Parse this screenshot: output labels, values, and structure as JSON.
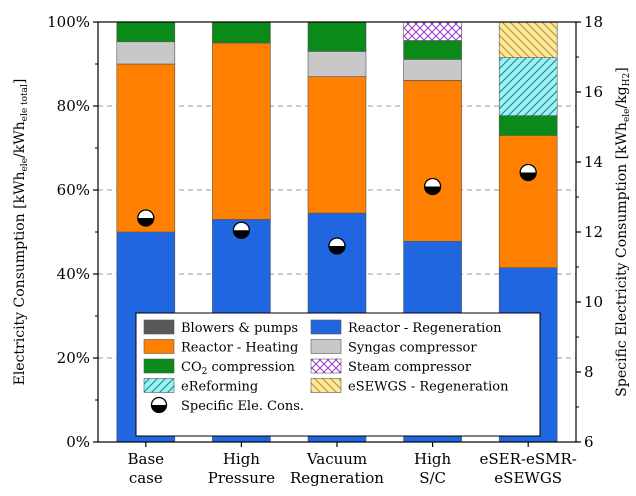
{
  "chart_data": {
    "type": "bar",
    "stacked": true,
    "categories": [
      [
        "Base",
        "case"
      ],
      [
        "High",
        "Pressure"
      ],
      [
        "Vacuum",
        "Regneration"
      ],
      [
        "High",
        "S/C"
      ],
      [
        "eSER-eSMR-",
        "eSEWGS"
      ]
    ],
    "y_left": {
      "label_main": "Electricity Consumption [kWh",
      "label_sub1": "ele",
      "label_mid": "/kWh",
      "label_sub2": "ele total",
      "label_end": "]",
      "range": [
        0,
        100
      ],
      "ticks": [
        "0%",
        "20%",
        "40%",
        "60%",
        "80%",
        "100%"
      ],
      "tick_values": [
        0,
        20,
        40,
        60,
        80,
        100
      ]
    },
    "y_right": {
      "label_main": "Specific Electricity Consumption [kWh",
      "label_sub1": "ele",
      "label_mid": "/kg",
      "label_sub2": "H2",
      "label_end": "]",
      "range": [
        6,
        18
      ],
      "ticks": [
        "6",
        "8",
        "10",
        "12",
        "14",
        "16",
        "18"
      ],
      "tick_values": [
        6,
        8,
        10,
        12,
        14,
        16,
        18
      ]
    },
    "grid": "horizontal-dashed",
    "legend_position": "bottom-center-inside",
    "series": [
      {
        "name": "Blowers & pumps",
        "color": "#595959",
        "pattern": "none",
        "values": [
          0,
          0,
          0,
          0,
          0
        ]
      },
      {
        "name": "Reactor - Regeneration",
        "color": "#1f66e0",
        "pattern": "none",
        "values": [
          50,
          53,
          54.5,
          47.8,
          41.5
        ]
      },
      {
        "name": "Reactor - Heating",
        "color": "#ff8000",
        "pattern": "none",
        "values": [
          40,
          42,
          32.5,
          38.3,
          31.5
        ]
      },
      {
        "name": "Syngas compressor",
        "color": "#c8c8c8",
        "pattern": "none",
        "values": [
          5.3,
          0,
          6,
          5,
          0
        ]
      },
      {
        "name": "CO2 compression",
        "name_parts": [
          "CO",
          "2",
          " compression"
        ],
        "color": "#0a8a18",
        "pattern": "none",
        "values": [
          4.7,
          5,
          7,
          4.5,
          4.7
        ]
      },
      {
        "name": "Steam compressor",
        "color": "#ffffff",
        "pattern": "cross-purple",
        "values": [
          0,
          0,
          0,
          4.4,
          0
        ]
      },
      {
        "name": "eReforming",
        "color": "#9ff0f0",
        "pattern": "diag-teal",
        "values": [
          0,
          0,
          0,
          0,
          13.8
        ]
      },
      {
        "name": "eSEWGS - Regeneration",
        "color": "#fbe8a0",
        "pattern": "diag-gold",
        "values": [
          0,
          0,
          0,
          0,
          8.5
        ]
      }
    ],
    "marker_series": {
      "name": "Specific Ele. Cons.",
      "axis": "right",
      "values": [
        12.4,
        12.05,
        11.6,
        13.3,
        13.7
      ]
    }
  }
}
